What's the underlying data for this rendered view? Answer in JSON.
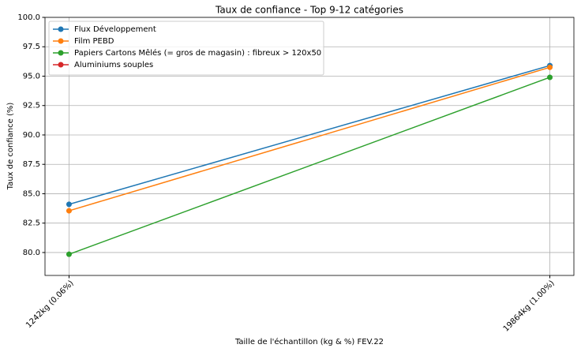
{
  "chart_data": {
    "type": "line",
    "title": "Taux de confiance - Top 9-12 catégories",
    "x_label": "Taille de l'échantillon (kg & %) FEV.22",
    "y_label": "Taux de confiance (%)",
    "categories": [
      "1242kg (0.06%)",
      "19864kg (1.00%)"
    ],
    "series": [
      {
        "name": "Flux Développement",
        "color": "#1f77b4",
        "values": [
          84.1,
          95.9
        ]
      },
      {
        "name": "Film PEBD",
        "color": "#ff7f0e",
        "values": [
          83.55,
          95.75
        ]
      },
      {
        "name": "Papiers Cartons Mêlés (= gros de magasin) : fibreux > 120x50",
        "color": "#2ca02c",
        "values": [
          79.85,
          94.9
        ]
      },
      {
        "name": "Aluminiums souples",
        "color": "#d62728",
        "values": [
          null,
          null
        ]
      }
    ],
    "ylim": [
      78.05,
      100
    ],
    "yticks": [
      {
        "value": 80,
        "label": "80.0"
      },
      82.5,
      {
        "value": 85,
        "label": "85.0"
      },
      87.5,
      {
        "value": 90,
        "label": "90.0"
      },
      92.5,
      {
        "value": 95,
        "label": "95.0"
      },
      97.5,
      {
        "value": 100,
        "label": "100.0"
      }
    ],
    "grid": true,
    "legend": "upper left"
  }
}
